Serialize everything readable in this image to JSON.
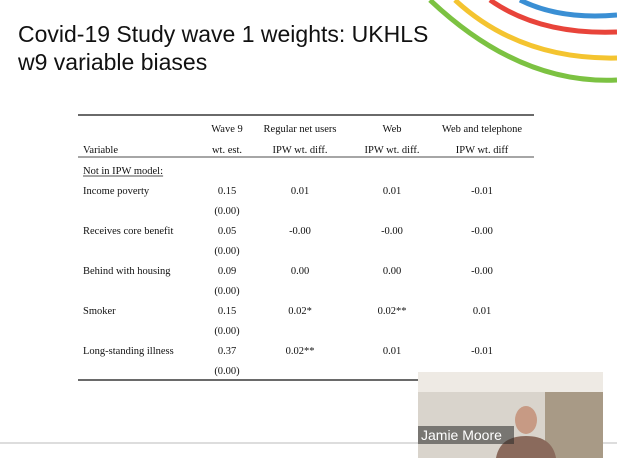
{
  "slide": {
    "title_lines": [
      "Covid-19 Study wave 1 weights: UKHLS",
      "w9 variable biases"
    ],
    "table": {
      "header_top": [
        "Wave 9",
        "Regular net users",
        "Web",
        "Web and telephone"
      ],
      "header": [
        "Variable",
        "wt. est.",
        "IPW wt. diff.",
        "IPW wt. diff.",
        "IPW wt. diff"
      ],
      "section": "Not in IPW model:",
      "rows": [
        {
          "cells": [
            "Income poverty",
            "0.15",
            "0.01",
            "0.01",
            "-0.01"
          ],
          "se": "(0.00)"
        },
        {
          "cells": [
            "Receives core benefit",
            "0.05",
            "-0.00",
            "-0.00",
            "-0.00"
          ],
          "se": "(0.00)"
        },
        {
          "cells": [
            "Behind with housing",
            "0.09",
            "0.00",
            "0.00",
            "-0.00"
          ],
          "se": "(0.00)"
        },
        {
          "cells": [
            "Smoker",
            "0.15",
            "0.02*",
            "0.02**",
            "0.01"
          ],
          "se": "(0.00)"
        },
        {
          "cells": [
            "Long-standing illness",
            "0.37",
            "0.02**",
            "0.01",
            "-0.01"
          ],
          "se": "(0.00)"
        }
      ]
    }
  },
  "video": {
    "name": "Jamie Moore"
  }
}
